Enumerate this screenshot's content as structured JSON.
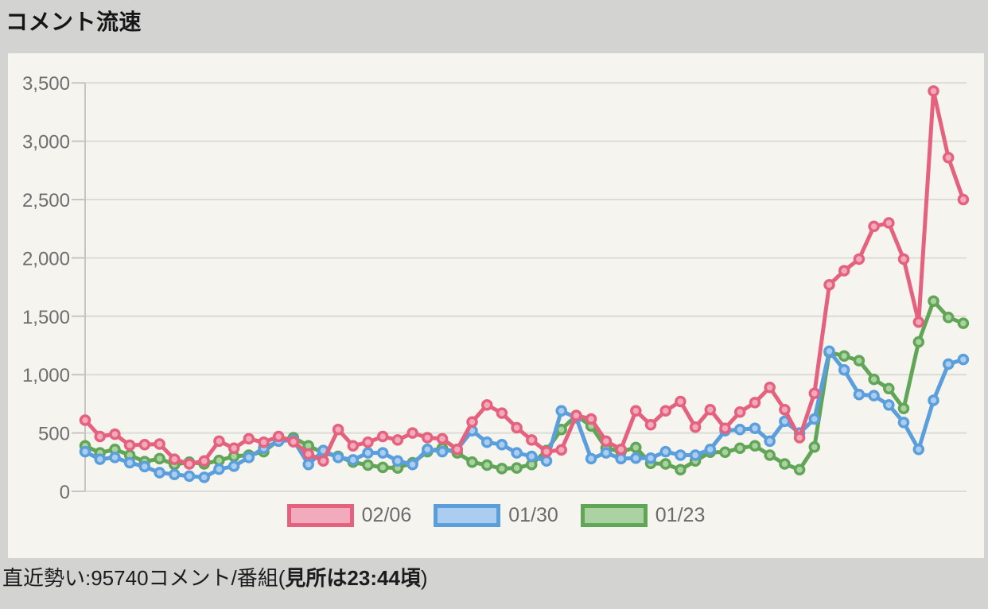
{
  "page": {
    "title": "コメント流速"
  },
  "footer": {
    "prefix": "直近勢い:95740コメント/番組(",
    "highlight": "見所は23:44頃",
    "suffix": ")"
  },
  "chart_data": {
    "type": "line",
    "title": "コメント流速",
    "xlabel": "",
    "ylabel": "",
    "ylim": [
      0,
      3500
    ],
    "ytick_step": 500,
    "ytick_labels": [
      "0",
      "500",
      "1,000",
      "1,500",
      "2,000",
      "2,500",
      "3,000",
      "3,500"
    ],
    "grid": true,
    "legend_position": "bottom",
    "x_tick_labels_visible": false,
    "points_per_series": 60,
    "series": [
      {
        "name": "02/06",
        "color": "#e5627f",
        "fill": "#f2abbc",
        "values": [
          610,
          470,
          490,
          395,
          400,
          405,
          275,
          235,
          260,
          430,
          370,
          450,
          420,
          470,
          425,
          320,
          260,
          530,
          390,
          420,
          470,
          440,
          500,
          460,
          450,
          360,
          595,
          740,
          670,
          545,
          440,
          340,
          355,
          650,
          620,
          430,
          360,
          690,
          570,
          690,
          770,
          550,
          700,
          540,
          680,
          760,
          890,
          700,
          460,
          840,
          1770,
          1890,
          1990,
          2270,
          2300,
          1990,
          1450,
          3430,
          2860,
          2500
        ]
      },
      {
        "name": "01/30",
        "color": "#5b9edc",
        "fill": "#aacdf0",
        "values": [
          340,
          275,
          290,
          245,
          212,
          160,
          145,
          130,
          120,
          190,
          215,
          290,
          370,
          430,
          440,
          230,
          350,
          290,
          270,
          330,
          330,
          260,
          230,
          360,
          340,
          360,
          520,
          420,
          400,
          330,
          300,
          260,
          690,
          630,
          280,
          330,
          280,
          285,
          285,
          340,
          310,
          310,
          360,
          520,
          530,
          540,
          430,
          600,
          500,
          620,
          1200,
          1040,
          830,
          820,
          740,
          590,
          360,
          780,
          1090,
          1130
        ]
      },
      {
        "name": "01/23",
        "color": "#61a557",
        "fill": "#abd2a3",
        "values": [
          390,
          330,
          360,
          310,
          255,
          280,
          230,
          250,
          235,
          265,
          300,
          310,
          340,
          440,
          460,
          390,
          330,
          300,
          250,
          225,
          205,
          200,
          245,
          340,
          370,
          330,
          250,
          225,
          195,
          200,
          230,
          350,
          530,
          650,
          560,
          370,
          340,
          375,
          240,
          235,
          185,
          260,
          335,
          335,
          370,
          390,
          310,
          235,
          185,
          380,
          1190,
          1160,
          1120,
          960,
          880,
          710,
          1280,
          1630,
          1490,
          1440
        ]
      }
    ],
    "colors": {
      "panel_background": "#f5f4ee",
      "page_background": "#d3d3d2",
      "gridline": "#dcdcd6",
      "axis": "#c6c6c0",
      "tick_label": "#6f6f6f"
    }
  }
}
